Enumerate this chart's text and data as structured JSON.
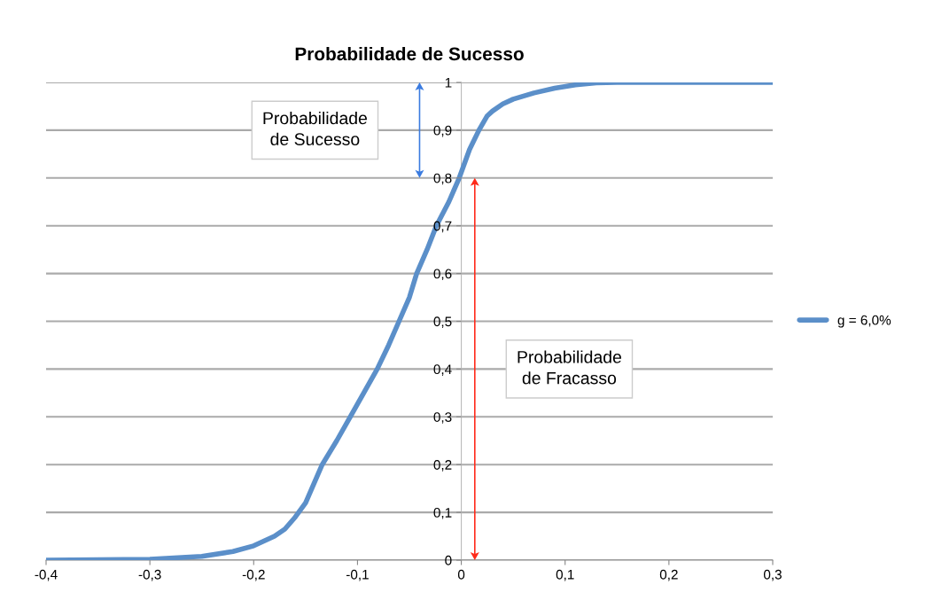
{
  "chart_data": {
    "type": "line",
    "title": "Probabilidade de Sucesso",
    "series": [
      {
        "name": "g = 6,0%",
        "color": "#5b8fc9",
        "x": [
          -0.4,
          -0.35,
          -0.3,
          -0.25,
          -0.22,
          -0.2,
          -0.18,
          -0.17,
          -0.16,
          -0.15,
          -0.134,
          -0.12,
          -0.107,
          -0.094,
          -0.081,
          -0.07,
          -0.06,
          -0.05,
          -0.043,
          -0.033,
          -0.024,
          -0.012,
          -0.002,
          0.008,
          0.017,
          0.025,
          0.03,
          0.04,
          0.05,
          0.07,
          0.09,
          0.11,
          0.13,
          0.15,
          0.2,
          0.25,
          0.3
        ],
        "values": [
          0,
          0.001,
          0.002,
          0.008,
          0.018,
          0.03,
          0.05,
          0.065,
          0.09,
          0.12,
          0.2,
          0.25,
          0.3,
          0.35,
          0.4,
          0.45,
          0.5,
          0.55,
          0.6,
          0.65,
          0.7,
          0.75,
          0.8,
          0.86,
          0.9,
          0.93,
          0.94,
          0.955,
          0.965,
          0.978,
          0.988,
          0.995,
          0.999,
          1,
          1,
          1,
          1
        ]
      }
    ],
    "xlim": [
      -0.4,
      0.3
    ],
    "xticks": [
      {
        "value": -0.4,
        "label": "-0,4"
      },
      {
        "value": -0.3,
        "label": "-0,3"
      },
      {
        "value": -0.2,
        "label": "-0,2"
      },
      {
        "value": -0.1,
        "label": "-0,1"
      },
      0,
      {
        "value": 0.1,
        "label": "0,1"
      },
      {
        "value": 0.2,
        "label": "0,2"
      },
      {
        "value": 0.3,
        "label": "0,3"
      }
    ],
    "ylim": [
      0,
      1
    ],
    "yticks": [
      0,
      {
        "value": 0.1,
        "label": "0,1"
      },
      {
        "value": 0.2,
        "label": "0,2"
      },
      {
        "value": 0.3,
        "label": "0,3"
      },
      {
        "value": 0.4,
        "label": "0,4"
      },
      {
        "value": 0.5,
        "label": "0,5"
      },
      {
        "value": 0.6,
        "label": "0,6"
      },
      {
        "value": 0.7,
        "label": "0,7"
      },
      {
        "value": 0.8,
        "label": "0,8"
      },
      {
        "value": 0.9,
        "label": "0,9"
      },
      1
    ],
    "grid": "y",
    "legend": "right",
    "marker": "none",
    "line_style": "solid",
    "annotations": [
      "Probabilidade\nde Sucesso",
      "Probabilidade\nde Fracasso"
    ]
  }
}
